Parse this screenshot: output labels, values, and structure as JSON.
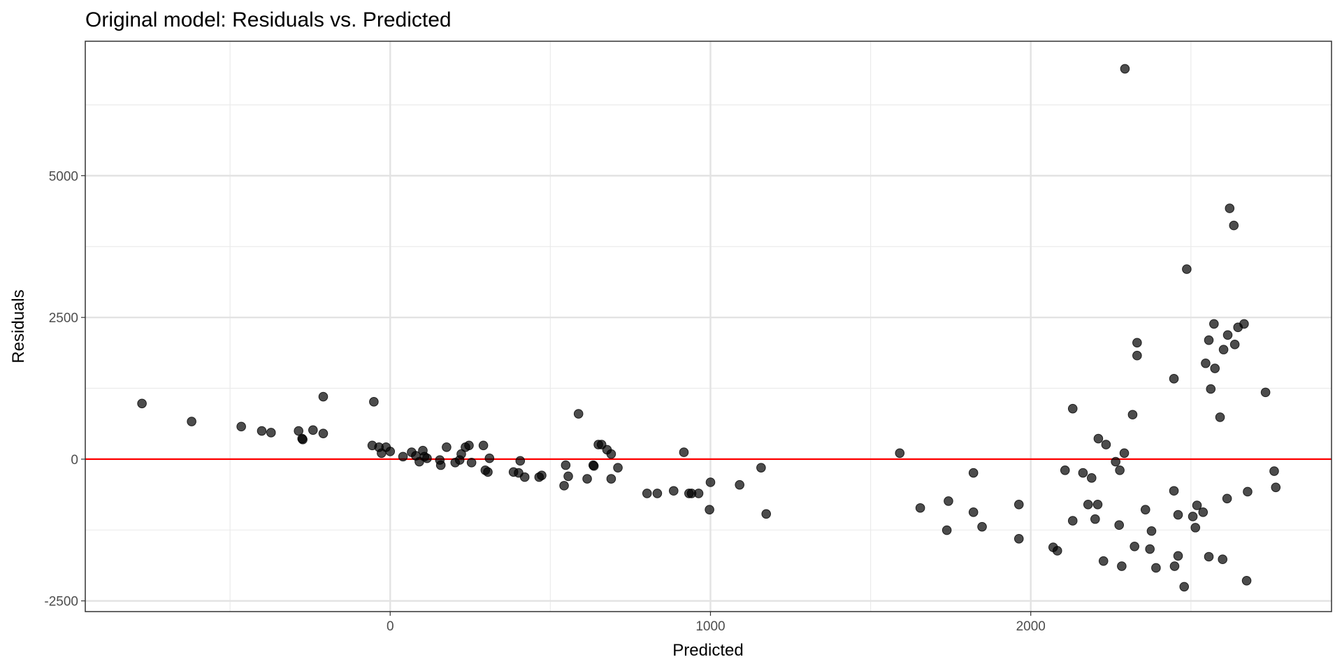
{
  "chart_data": {
    "type": "scatter",
    "title": "Original model: Residuals vs. Predicted",
    "xlabel": "Predicted",
    "ylabel": "Residuals",
    "xlim": [
      -952,
      2939
    ],
    "ylim": [
      -2689,
      7372
    ],
    "x_ticks": [
      0,
      1000,
      2000
    ],
    "x_tick_labels": [
      "0",
      "1000",
      "2000"
    ],
    "x_minor": [
      -500,
      500,
      1500,
      2500
    ],
    "y_ticks": [
      -2500,
      0,
      2500,
      5000
    ],
    "y_tick_labels": [
      "-2500",
      "0",
      "2500",
      "5000"
    ],
    "y_minor": [
      -1250,
      1250,
      3750,
      6250
    ],
    "grid": true,
    "reference_line": {
      "y": 0,
      "color": "#ff0000"
    },
    "point_color": "#000000",
    "point_opacity": 0.7,
    "points": [
      [
        -775,
        982
      ],
      [
        -620,
        664
      ],
      [
        -465,
        574
      ],
      [
        -401,
        498
      ],
      [
        -372,
        468
      ],
      [
        -286,
        498
      ],
      [
        -275,
        362
      ],
      [
        -273,
        347
      ],
      [
        -241,
        513
      ],
      [
        -209,
        453
      ],
      [
        -209,
        1102
      ],
      [
        -51,
        1012
      ],
      [
        -56,
        242
      ],
      [
        -35,
        211
      ],
      [
        -27,
        106
      ],
      [
        -13,
        211
      ],
      [
        0,
        136
      ],
      [
        40,
        45
      ],
      [
        67,
        121
      ],
      [
        80,
        60
      ],
      [
        91,
        -45
      ],
      [
        102,
        151
      ],
      [
        107,
        45
      ],
      [
        115,
        15
      ],
      [
        155,
        -15
      ],
      [
        158,
        -106
      ],
      [
        176,
        211
      ],
      [
        203,
        -60
      ],
      [
        217,
        -15
      ],
      [
        222,
        91
      ],
      [
        235,
        211
      ],
      [
        246,
        242
      ],
      [
        254,
        -60
      ],
      [
        291,
        242
      ],
      [
        297,
        -196
      ],
      [
        310,
        15
      ],
      [
        305,
        -227
      ],
      [
        385,
        -227
      ],
      [
        401,
        -242
      ],
      [
        406,
        -30
      ],
      [
        420,
        -317
      ],
      [
        465,
        -317
      ],
      [
        473,
        -287
      ],
      [
        543,
        -468
      ],
      [
        548,
        -106
      ],
      [
        556,
        -302
      ],
      [
        588,
        800
      ],
      [
        615,
        -347
      ],
      [
        634,
        -106
      ],
      [
        636,
        -121
      ],
      [
        650,
        257
      ],
      [
        660,
        257
      ],
      [
        677,
        166
      ],
      [
        690,
        91
      ],
      [
        690,
        -347
      ],
      [
        711,
        -151
      ],
      [
        802,
        -604
      ],
      [
        834,
        -604
      ],
      [
        885,
        -559
      ],
      [
        917,
        121
      ],
      [
        933,
        -604
      ],
      [
        941,
        -604
      ],
      [
        963,
        -604
      ],
      [
        997,
        -891
      ],
      [
        1000,
        -408
      ],
      [
        1091,
        -453
      ],
      [
        1158,
        -151
      ],
      [
        1174,
        -966
      ],
      [
        1591,
        106
      ],
      [
        1655,
        -861
      ],
      [
        1743,
        -740
      ],
      [
        1738,
        -1253
      ],
      [
        1821,
        -242
      ],
      [
        1821,
        -936
      ],
      [
        1848,
        -1193
      ],
      [
        1963,
        -800
      ],
      [
        1963,
        -1404
      ],
      [
        2070,
        -1555
      ],
      [
        2083,
        -1616
      ],
      [
        2107,
        -196
      ],
      [
        2131,
        -1087
      ],
      [
        2131,
        891
      ],
      [
        2163,
        -242
      ],
      [
        2179,
        -800
      ],
      [
        2190,
        -332
      ],
      [
        2201,
        -1057
      ],
      [
        2211,
        362
      ],
      [
        2209,
        -800
      ],
      [
        2235,
        257
      ],
      [
        2227,
        -1797
      ],
      [
        2265,
        -45
      ],
      [
        2276,
        -1163
      ],
      [
        2278,
        -196
      ],
      [
        2284,
        -1888
      ],
      [
        2292,
        106
      ],
      [
        2294,
        6886
      ],
      [
        2318,
        785
      ],
      [
        2324,
        -1540
      ],
      [
        2332,
        2054
      ],
      [
        2332,
        1827
      ],
      [
        2358,
        -891
      ],
      [
        2372,
        -1586
      ],
      [
        2377,
        -1268
      ],
      [
        2391,
        -1918
      ],
      [
        2447,
        1419
      ],
      [
        2447,
        -559
      ],
      [
        2449,
        -1888
      ],
      [
        2460,
        -1706
      ],
      [
        2460,
        -982
      ],
      [
        2479,
        -2250
      ],
      [
        2487,
        3352
      ],
      [
        2506,
        -1012
      ],
      [
        2514,
        -1208
      ],
      [
        2519,
        -815
      ],
      [
        2538,
        -936
      ],
      [
        2546,
        1691
      ],
      [
        2556,
        2099
      ],
      [
        2556,
        -1721
      ],
      [
        2562,
        1238
      ],
      [
        2572,
        2386
      ],
      [
        2575,
        1601
      ],
      [
        2591,
        740
      ],
      [
        2599,
        -1767
      ],
      [
        2602,
        1933
      ],
      [
        2613,
        -695
      ],
      [
        2615,
        2190
      ],
      [
        2621,
        4424
      ],
      [
        2634,
        4122
      ],
      [
        2637,
        2023
      ],
      [
        2647,
        2325
      ],
      [
        2666,
        2386
      ],
      [
        2674,
        -2144
      ],
      [
        2677,
        -574
      ],
      [
        2733,
        1178
      ],
      [
        2760,
        -211
      ],
      [
        2765,
        -498
      ]
    ]
  }
}
